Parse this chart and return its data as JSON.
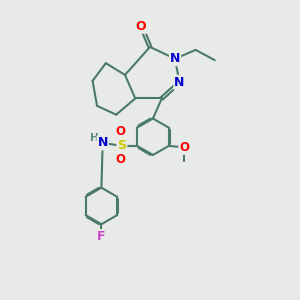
{
  "background_color": "#e8eae8",
  "bond_color": "#4a7a6a",
  "bond_width": 1.5,
  "atom_colors": {
    "O": "#ff0000",
    "N": "#0000cc",
    "S": "#cccc00",
    "F": "#cc44cc",
    "H": "#5a8a7a",
    "C": "#4a7a6a"
  },
  "font_size": 8.5
}
